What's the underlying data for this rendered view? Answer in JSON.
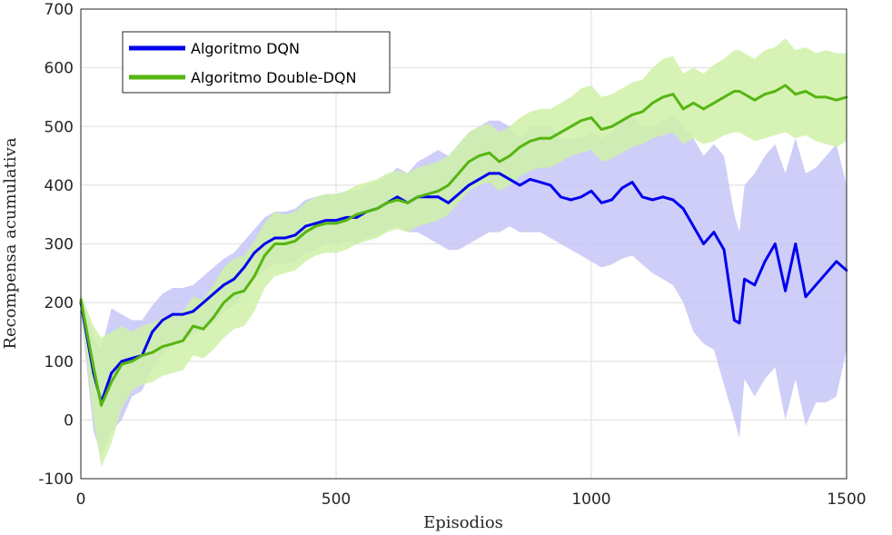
{
  "chart_data": {
    "type": "line",
    "title": "",
    "xlabel": "Episodios",
    "ylabel": "Recompensa acumulativa",
    "xlim": [
      0,
      1500
    ],
    "ylim": [
      -100,
      700
    ],
    "xticks": [
      "0",
      "500",
      "1000",
      "1500"
    ],
    "yticks": [
      "-100",
      "0",
      "100",
      "200",
      "300",
      "400",
      "500",
      "600",
      "700"
    ],
    "grid": true,
    "legend_position": "top-left",
    "x": [
      0,
      25,
      40,
      60,
      80,
      100,
      120,
      140,
      160,
      180,
      200,
      220,
      240,
      260,
      280,
      300,
      320,
      340,
      360,
      380,
      400,
      420,
      440,
      460,
      480,
      500,
      520,
      540,
      560,
      580,
      600,
      620,
      640,
      660,
      680,
      700,
      720,
      740,
      760,
      780,
      800,
      820,
      840,
      860,
      880,
      900,
      920,
      940,
      960,
      980,
      1000,
      1020,
      1040,
      1060,
      1080,
      1100,
      1120,
      1140,
      1160,
      1180,
      1200,
      1220,
      1240,
      1260,
      1280,
      1290,
      1300,
      1320,
      1340,
      1360,
      1380,
      1400,
      1420,
      1440,
      1460,
      1480,
      1500
    ],
    "series": [
      {
        "name": "Algoritmo DQN",
        "color": "#0000ee",
        "band_color": "#c6c6f7",
        "values": [
          200,
          80,
          30,
          80,
          100,
          105,
          110,
          150,
          170,
          180,
          180,
          185,
          200,
          215,
          230,
          240,
          260,
          285,
          300,
          310,
          310,
          315,
          330,
          335,
          340,
          340,
          345,
          345,
          355,
          360,
          370,
          380,
          370,
          380,
          380,
          380,
          370,
          385,
          400,
          410,
          420,
          420,
          410,
          400,
          410,
          405,
          400,
          380,
          375,
          380,
          390,
          370,
          375,
          395,
          405,
          380,
          375,
          380,
          375,
          360,
          330,
          300,
          320,
          290,
          170,
          165,
          240,
          230,
          270,
          300,
          220,
          300,
          210,
          230,
          250,
          270,
          255
        ],
        "lower": [
          185,
          -20,
          -60,
          -20,
          0,
          40,
          50,
          90,
          110,
          130,
          140,
          145,
          155,
          165,
          185,
          195,
          215,
          240,
          255,
          265,
          265,
          270,
          285,
          290,
          300,
          300,
          305,
          300,
          310,
          315,
          325,
          330,
          320,
          320,
          310,
          300,
          290,
          290,
          300,
          310,
          320,
          320,
          330,
          320,
          320,
          320,
          310,
          300,
          290,
          280,
          270,
          260,
          265,
          275,
          280,
          265,
          250,
          240,
          230,
          200,
          150,
          130,
          120,
          60,
          0,
          -30,
          70,
          40,
          70,
          90,
          0,
          70,
          -10,
          30,
          30,
          40,
          120
        ],
        "upper": [
          215,
          140,
          120,
          190,
          180,
          170,
          170,
          195,
          215,
          225,
          225,
          230,
          245,
          260,
          275,
          285,
          305,
          325,
          345,
          355,
          355,
          360,
          375,
          380,
          385,
          385,
          390,
          390,
          400,
          405,
          415,
          430,
          420,
          440,
          450,
          460,
          450,
          470,
          490,
          500,
          510,
          510,
          500,
          480,
          500,
          500,
          500,
          480,
          480,
          480,
          490,
          480,
          490,
          510,
          520,
          500,
          500,
          510,
          520,
          500,
          480,
          450,
          470,
          450,
          350,
          320,
          400,
          420,
          450,
          470,
          420,
          480,
          420,
          430,
          450,
          470,
          400
        ]
      },
      {
        "name": "Algoritmo Double-DQN",
        "color": "#56b511",
        "band_color": "#cff1a8",
        "values": [
          205,
          90,
          25,
          65,
          95,
          100,
          110,
          115,
          125,
          130,
          135,
          160,
          155,
          175,
          200,
          215,
          220,
          245,
          280,
          300,
          300,
          305,
          320,
          330,
          335,
          335,
          340,
          350,
          355,
          360,
          370,
          375,
          370,
          380,
          385,
          390,
          400,
          420,
          440,
          450,
          455,
          440,
          450,
          465,
          475,
          480,
          480,
          490,
          500,
          510,
          515,
          495,
          500,
          510,
          520,
          525,
          540,
          550,
          555,
          530,
          540,
          530,
          540,
          550,
          560,
          560,
          555,
          545,
          555,
          560,
          570,
          555,
          560,
          550,
          550,
          545,
          550
        ],
        "lower": [
          190,
          0,
          -80,
          -40,
          20,
          50,
          60,
          65,
          75,
          80,
          85,
          110,
          105,
          120,
          140,
          155,
          160,
          185,
          225,
          245,
          250,
          255,
          270,
          280,
          285,
          285,
          290,
          300,
          305,
          310,
          320,
          325,
          320,
          330,
          335,
          340,
          350,
          370,
          390,
          400,
          405,
          390,
          400,
          415,
          425,
          430,
          430,
          440,
          450,
          455,
          460,
          440,
          445,
          455,
          465,
          470,
          480,
          485,
          490,
          470,
          480,
          470,
          475,
          485,
          490,
          490,
          485,
          475,
          480,
          485,
          490,
          480,
          485,
          475,
          470,
          465,
          475
        ],
        "upper": [
          215,
          160,
          140,
          150,
          160,
          150,
          160,
          165,
          175,
          180,
          185,
          210,
          205,
          230,
          260,
          275,
          280,
          305,
          335,
          355,
          350,
          355,
          370,
          380,
          385,
          385,
          390,
          400,
          405,
          410,
          420,
          425,
          420,
          430,
          435,
          440,
          450,
          470,
          490,
          500,
          505,
          490,
          500,
          515,
          525,
          530,
          530,
          540,
          550,
          565,
          570,
          550,
          555,
          565,
          575,
          580,
          600,
          615,
          620,
          590,
          600,
          590,
          605,
          615,
          630,
          630,
          625,
          615,
          630,
          635,
          650,
          630,
          635,
          625,
          630,
          625,
          625
        ]
      }
    ]
  }
}
